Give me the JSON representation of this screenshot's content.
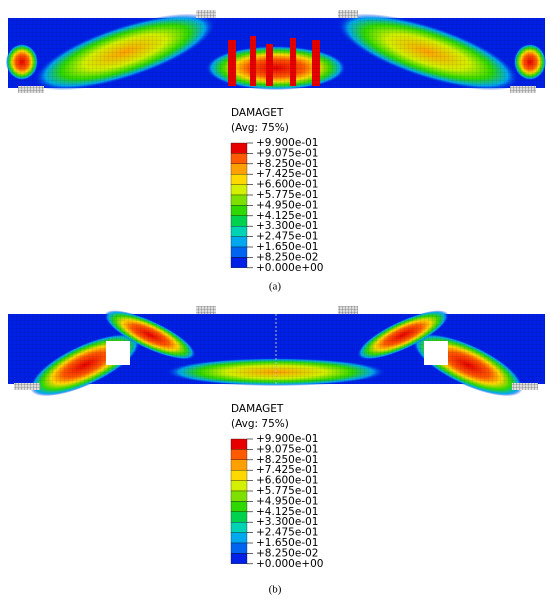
{
  "panels": [
    {
      "legend": {
        "title": "DAMAGET",
        "subtitle": "(Avg: 75%)",
        "labels": [
          "+9.900e-01",
          "+9.075e-01",
          "+8.250e-01",
          "+7.425e-01",
          "+6.600e-01",
          "+5.775e-01",
          "+4.950e-01",
          "+4.125e-01",
          "+3.300e-01",
          "+2.475e-01",
          "+1.650e-01",
          "+8.250e-02",
          "+0.000e+00"
        ],
        "colors": [
          "#e60000",
          "#ff5a00",
          "#ffa000",
          "#ffd800",
          "#d2f000",
          "#7ee000",
          "#2ed800",
          "#00d250",
          "#00d2b4",
          "#00a8f0",
          "#0064f0",
          "#0020e6"
        ]
      },
      "caption": "(a)"
    },
    {
      "legend": {
        "title": "DAMAGET",
        "subtitle": "(Avg: 75%)",
        "labels": [
          "+9.900e-01",
          "+9.075e-01",
          "+8.250e-01",
          "+7.425e-01",
          "+6.600e-01",
          "+5.775e-01",
          "+4.950e-01",
          "+4.125e-01",
          "+3.300e-01",
          "+2.475e-01",
          "+1.650e-01",
          "+8.250e-02",
          "+0.000e+00"
        ],
        "colors": [
          "#e60000",
          "#ff5a00",
          "#ffa000",
          "#ffd800",
          "#d2f000",
          "#7ee000",
          "#2ed800",
          "#00d250",
          "#00d2b4",
          "#00a8f0",
          "#0064f0",
          "#0020e6"
        ]
      },
      "caption": "(b)"
    }
  ]
}
